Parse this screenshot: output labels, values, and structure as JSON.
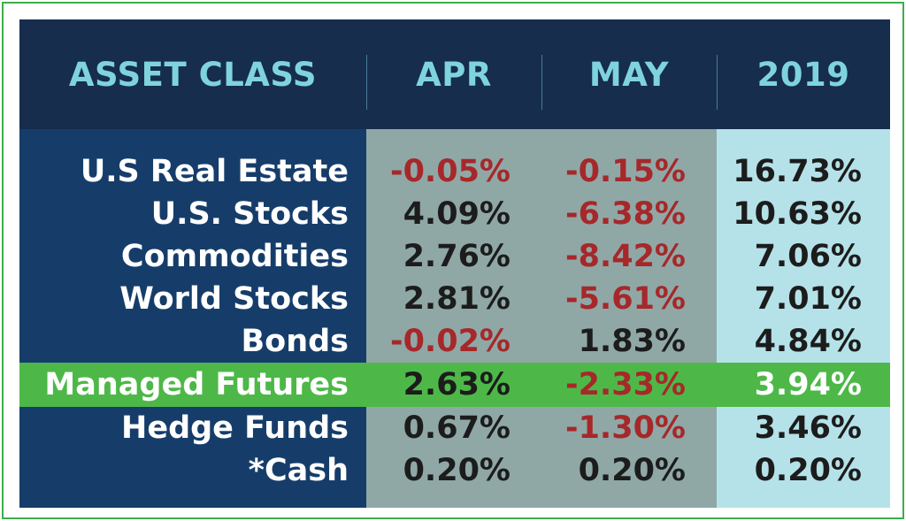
{
  "chart_data": {
    "type": "table",
    "headers": [
      "ASSET CLASS",
      "APR",
      "MAY",
      "2019"
    ],
    "highlighted_row": "Managed Futures",
    "rows": [
      {
        "label": "U.S Real Estate",
        "apr": "-0.05%",
        "may": "-0.15%",
        "ytd": "16.73%"
      },
      {
        "label": "U.S. Stocks",
        "apr": "4.09%",
        "may": "-6.38%",
        "ytd": "10.63%"
      },
      {
        "label": "Commodities",
        "apr": "2.76%",
        "may": "-8.42%",
        "ytd": "7.06%"
      },
      {
        "label": "World Stocks",
        "apr": "2.81%",
        "may": "-5.61%",
        "ytd": "7.01%"
      },
      {
        "label": "Bonds",
        "apr": "-0.02%",
        "may": "1.83%",
        "ytd": "4.84%"
      },
      {
        "label": "Managed Futures",
        "apr": "2.63%",
        "may": "-2.33%",
        "ytd": "3.94%"
      },
      {
        "label": "Hedge Funds",
        "apr": "0.67%",
        "may": "-1.30%",
        "ytd": "3.46%"
      },
      {
        "label": "*Cash",
        "apr": "0.20%",
        "may": "0.20%",
        "ytd": "0.20%"
      }
    ]
  },
  "colors": {
    "header_bg": "#162d4d",
    "header_text": "#7fd3df",
    "label_column_bg": "#163d6a",
    "apr_may_column_bg": "#8fa8a6",
    "ytd_column_bg": "#b5e2e8",
    "highlight_row": "#4db848",
    "negative_text": "#a6282a",
    "frame_border": "#3fae49"
  }
}
